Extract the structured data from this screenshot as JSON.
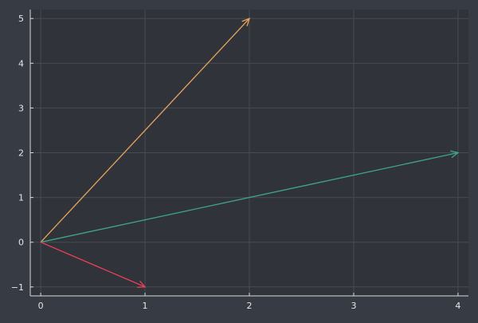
{
  "chart_data": {
    "type": "vector_field",
    "title": "",
    "xlabel": "",
    "ylabel": "",
    "xlim": [
      -0.1,
      4.1
    ],
    "ylim": [
      -1.2,
      5.2
    ],
    "x_ticks": [
      0,
      1,
      2,
      3,
      4
    ],
    "y_ticks": [
      -1,
      0,
      1,
      2,
      3,
      4,
      5
    ],
    "grid": true,
    "legend": "none",
    "series": [
      {
        "origin": [
          0,
          0
        ],
        "end": [
          2,
          5
        ],
        "color": "#e8a55c"
      },
      {
        "origin": [
          0,
          0
        ],
        "end": [
          4,
          2
        ],
        "color": "#3fa684"
      },
      {
        "origin": [
          0,
          0
        ],
        "end": [
          1,
          -1
        ],
        "color": "#e8405a"
      }
    ]
  },
  "colors": {
    "background": "#373b43",
    "plot_area": "#30343a",
    "axis": "#d9d9d9",
    "grid": "#474b52",
    "text": "#e6e6e6"
  }
}
